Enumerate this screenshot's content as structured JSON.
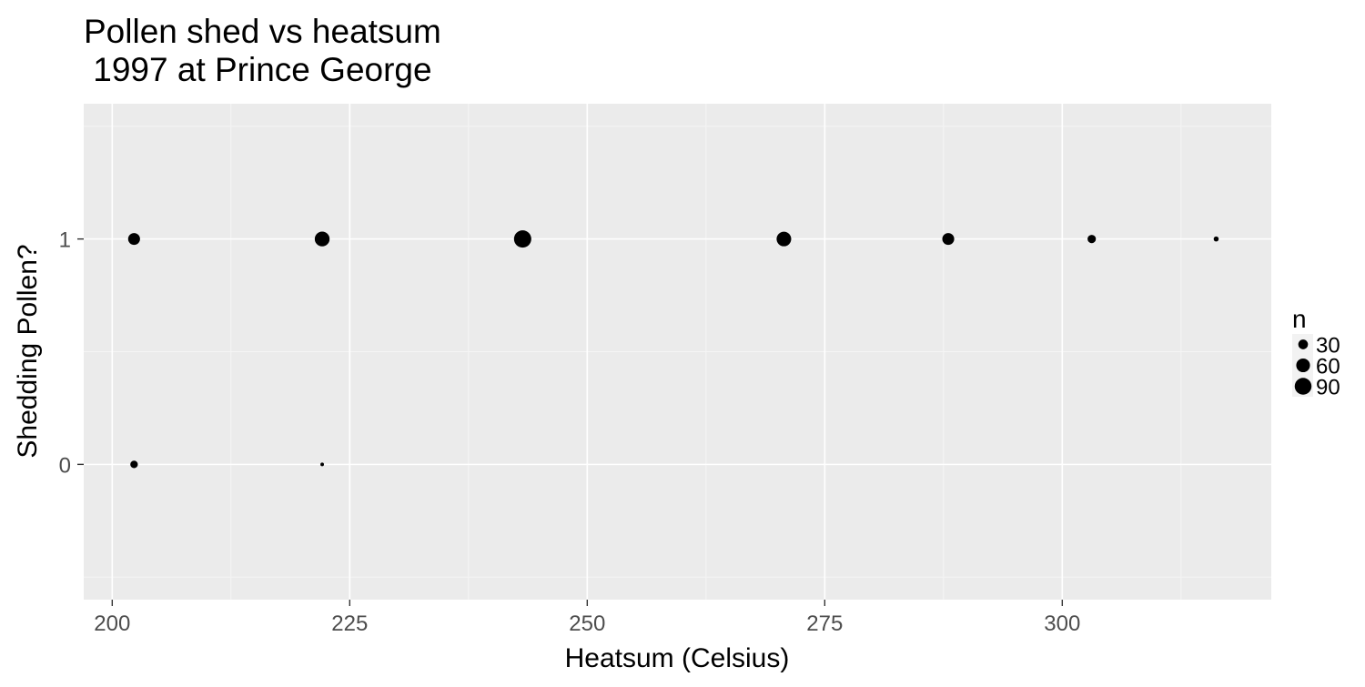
{
  "chart_data": {
    "type": "scatter",
    "title_lines": [
      "Pollen shed vs heatsum",
      " 1997 at Prince George"
    ],
    "xlabel": "Heatsum (Celsius)",
    "ylabel": "Shedding Pollen?",
    "xlim": [
      197,
      322
    ],
    "ylim": [
      -0.6,
      1.6
    ],
    "x_ticks": [
      200,
      225,
      250,
      275,
      300
    ],
    "x_tick_labels": [
      "200",
      "225",
      "250",
      "275",
      "300"
    ],
    "y_ticks": [
      0,
      1
    ],
    "y_tick_labels": [
      "0",
      "1"
    ],
    "grid": true,
    "size_variable": "n",
    "points": [
      {
        "x": 202.3,
        "y": 1,
        "n": 45
      },
      {
        "x": 222.1,
        "y": 1,
        "n": 70
      },
      {
        "x": 243.2,
        "y": 1,
        "n": 95
      },
      {
        "x": 270.7,
        "y": 1,
        "n": 68
      },
      {
        "x": 288.0,
        "y": 1,
        "n": 45
      },
      {
        "x": 303.1,
        "y": 1,
        "n": 22
      },
      {
        "x": 316.2,
        "y": 1,
        "n": 8
      },
      {
        "x": 202.3,
        "y": 0,
        "n": 18
      },
      {
        "x": 222.1,
        "y": 0,
        "n": 4
      }
    ],
    "legend": {
      "title": "n",
      "position": "right",
      "entries": [
        {
          "label": "30",
          "n": 30
        },
        {
          "label": "60",
          "n": 60
        },
        {
          "label": "90",
          "n": 90
        }
      ]
    },
    "colors": {
      "panel_background": "#ebebeb",
      "grid_major": "#ffffff",
      "grid_minor": "#f5f5f5",
      "point": "#000000",
      "tick_text": "#4d4d4d"
    }
  }
}
